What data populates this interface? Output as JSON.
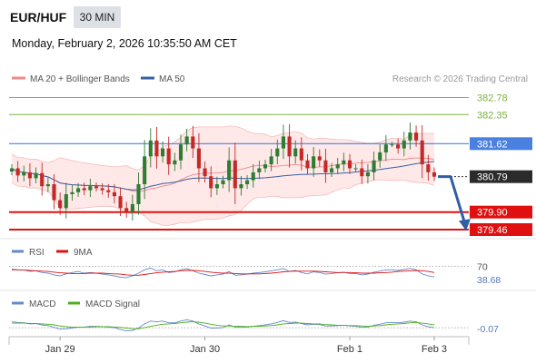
{
  "header": {
    "symbol": "EUR/HUF",
    "timeframe": "30 MIN",
    "datetime": "Monday, February 2, 2026 10:35:50 AM CET"
  },
  "attribution": "Research © 2026 Trading Central",
  "colors": {
    "bollinger": "#f08a8a",
    "ma50": "#3a5fa0",
    "resistance": "#7cb342",
    "pivot": "#4a80e0",
    "support": "#e01010",
    "candle_up": "#2e7d32",
    "candle_down": "#c62828",
    "arrow": "#2e5fa3",
    "rsi": "#6688cc",
    "rsi_ma": "#e01010",
    "macd": "#6688cc",
    "macd_signal": "#4caf1a"
  },
  "chart_data": [
    {
      "type": "candlestick",
      "legend": [
        {
          "name": "MA 20 + Bollinger Bands",
          "color": "#f08a8a"
        },
        {
          "name": "MA 50",
          "color": "#3a5fa0"
        }
      ],
      "ylim": [
        379.3,
        382.95
      ],
      "x_labels": [
        {
          "label": "Jan 29",
          "index": 8
        },
        {
          "label": "Jan 30",
          "index": 32
        },
        {
          "label": "Feb 1",
          "index": 56
        },
        {
          "label": "Feb 3",
          "index": 70
        }
      ],
      "levels": [
        {
          "label": "382.78",
          "value": 382.78,
          "kind": "resistance"
        },
        {
          "label": "382.35",
          "value": 382.35,
          "kind": "resistance"
        },
        {
          "label": "381.62",
          "value": 381.62,
          "kind": "pivot"
        },
        {
          "label": "380.79",
          "value": 380.79,
          "kind": "last"
        },
        {
          "label": "379.90",
          "value": 379.9,
          "kind": "support"
        },
        {
          "label": "379.46",
          "value": 379.46,
          "kind": "support"
        }
      ],
      "close": [
        381.0,
        380.82,
        380.9,
        380.75,
        380.88,
        380.55,
        380.6,
        380.2,
        380.0,
        380.35,
        380.4,
        380.5,
        380.45,
        380.55,
        380.5,
        380.45,
        380.4,
        380.3,
        380.0,
        379.9,
        380.1,
        380.6,
        381.3,
        381.7,
        381.3,
        381.5,
        381.1,
        381.2,
        381.6,
        381.8,
        381.5,
        381.0,
        380.8,
        380.5,
        380.6,
        380.7,
        381.2,
        380.5,
        380.6,
        380.7,
        380.9,
        381.0,
        381.1,
        381.3,
        381.5,
        381.8,
        381.3,
        381.5,
        381.2,
        381.0,
        381.3,
        381.2,
        380.9,
        381.0,
        381.1,
        381.2,
        381.0,
        381.0,
        380.8,
        380.9,
        381.2,
        381.4,
        381.6,
        381.6,
        381.5,
        381.7,
        381.9,
        381.7,
        381.1,
        380.9,
        380.79
      ],
      "projection": {
        "from": 380.79,
        "to": 379.5
      }
    },
    {
      "type": "line",
      "name": "RSI",
      "legend": [
        {
          "name": "RSI",
          "color": "#6688cc"
        },
        {
          "name": "9MA",
          "color": "#e01010"
        }
      ],
      "ylim": [
        10,
        90
      ],
      "reference_level": 70,
      "reference_label": "70",
      "last_value": 38.68,
      "last_label": "38.68",
      "series": [
        {
          "name": "RSI",
          "values": [
            62,
            60,
            59,
            55,
            57,
            52,
            50,
            45,
            42,
            48,
            52,
            55,
            50,
            52,
            50,
            47,
            45,
            42,
            38,
            37,
            42,
            50,
            60,
            65,
            57,
            60,
            52,
            54,
            60,
            63,
            57,
            50,
            46,
            42,
            45,
            47,
            55,
            44,
            45,
            47,
            50,
            52,
            54,
            57,
            60,
            64,
            55,
            58,
            52,
            48,
            54,
            52,
            47,
            49,
            51,
            53,
            49,
            49,
            45,
            47,
            53,
            56,
            60,
            60,
            58,
            61,
            64,
            60,
            48,
            42,
            38.68
          ]
        },
        {
          "name": "9MA",
          "values": [
            60,
            60,
            59,
            58,
            57,
            56,
            55,
            53,
            51,
            50,
            49,
            49,
            49,
            50,
            50,
            50,
            49,
            48,
            47,
            45,
            44,
            44,
            46,
            49,
            51,
            53,
            54,
            55,
            57,
            58,
            58,
            57,
            55,
            53,
            51,
            50,
            50,
            49,
            48,
            48,
            48,
            48,
            49,
            50,
            52,
            54,
            55,
            56,
            56,
            56,
            56,
            55,
            54,
            53,
            52,
            52,
            52,
            51,
            50,
            50,
            50,
            51,
            52,
            53,
            55,
            56,
            57,
            58,
            57,
            55,
            52
          ]
        }
      ]
    },
    {
      "type": "line",
      "name": "MACD",
      "legend": [
        {
          "name": "MACD",
          "color": "#6688cc"
        },
        {
          "name": "MACD Signal",
          "color": "#4caf1a"
        }
      ],
      "ylim": [
        -0.3,
        0.4
      ],
      "reference_level": -0.07,
      "last_label": "-0.07",
      "series": [
        {
          "name": "MACD",
          "values": [
            0.1,
            0.08,
            0.07,
            0.04,
            0.05,
            0.01,
            -0.01,
            -0.06,
            -0.11,
            -0.1,
            -0.08,
            -0.05,
            -0.05,
            -0.03,
            -0.03,
            -0.04,
            -0.05,
            -0.07,
            -0.12,
            -0.16,
            -0.15,
            -0.08,
            0.04,
            0.12,
            0.1,
            0.12,
            0.07,
            0.07,
            0.12,
            0.16,
            0.12,
            0.04,
            -0.02,
            -0.08,
            -0.08,
            -0.07,
            0.01,
            -0.05,
            -0.06,
            -0.05,
            -0.03,
            -0.01,
            0.01,
            0.04,
            0.08,
            0.13,
            0.08,
            0.09,
            0.05,
            0.01,
            0.03,
            0.02,
            -0.02,
            -0.02,
            -0.01,
            0.0,
            -0.02,
            -0.03,
            -0.06,
            -0.05,
            0.0,
            0.03,
            0.07,
            0.08,
            0.07,
            0.09,
            0.12,
            0.1,
            0.01,
            -0.04,
            -0.07
          ]
        },
        {
          "name": "MACD Signal",
          "values": [
            0.06,
            0.06,
            0.06,
            0.05,
            0.05,
            0.04,
            0.03,
            0.01,
            -0.02,
            -0.04,
            -0.05,
            -0.05,
            -0.05,
            -0.05,
            -0.04,
            -0.04,
            -0.04,
            -0.05,
            -0.06,
            -0.08,
            -0.1,
            -0.1,
            -0.07,
            -0.03,
            0.0,
            0.03,
            0.04,
            0.05,
            0.07,
            0.09,
            0.1,
            0.09,
            0.06,
            0.03,
            0.0,
            -0.02,
            -0.02,
            -0.03,
            -0.03,
            -0.04,
            -0.03,
            -0.03,
            -0.02,
            -0.01,
            0.01,
            0.04,
            0.05,
            0.06,
            0.06,
            0.05,
            0.04,
            0.04,
            0.02,
            0.01,
            0.0,
            0.0,
            -0.01,
            -0.01,
            -0.02,
            -0.03,
            -0.02,
            -0.01,
            0.01,
            0.03,
            0.04,
            0.05,
            0.07,
            0.08,
            0.06,
            0.04,
            0.01
          ]
        }
      ]
    }
  ]
}
